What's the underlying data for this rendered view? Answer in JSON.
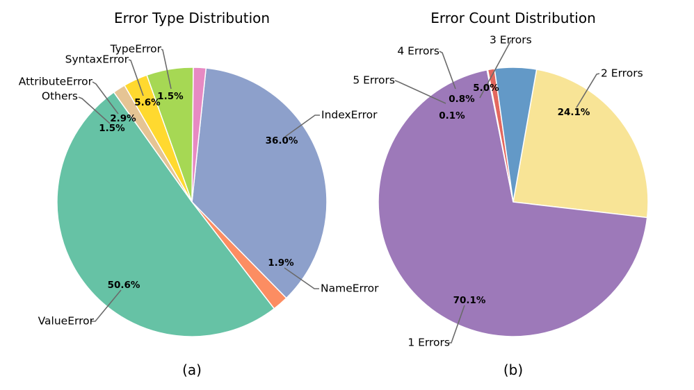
{
  "chart_data": [
    {
      "type": "pie",
      "title": "Error Type Distribution",
      "caption": "(a)",
      "slices": [
        {
          "label": "IndexError",
          "value": 36.0,
          "pct_label": "36.0%",
          "color": "#8da0cb"
        },
        {
          "label": "NameError",
          "value": 1.9,
          "pct_label": "1.9%",
          "color": "#fc8d62"
        },
        {
          "label": "ValueError",
          "value": 50.6,
          "pct_label": "50.6%",
          "color": "#66c2a5"
        },
        {
          "label": "Others",
          "value": 1.5,
          "pct_label": "1.5%",
          "color": "#e5c494"
        },
        {
          "label": "AttributeError",
          "value": 2.9,
          "pct_label": "2.9%",
          "color": "#ffd92f"
        },
        {
          "label": "SyntaxError",
          "value": 5.6,
          "pct_label": "5.6%",
          "color": "#a6d854"
        },
        {
          "label": "TypeError",
          "value": 1.5,
          "pct_label": "1.5%",
          "color": "#e78ac3"
        }
      ]
    },
    {
      "type": "pie",
      "title": "Error Count Distribution",
      "caption": "(b)",
      "slices": [
        {
          "label": "2 Errors",
          "value": 24.1,
          "pct_label": "24.1%",
          "color": "#f8e496"
        },
        {
          "label": "1 Errors",
          "value": 70.1,
          "pct_label": "70.1%",
          "color": "#9d79b9"
        },
        {
          "label": "5 Errors",
          "value": 0.1,
          "pct_label": "0.1%",
          "color": "#e8c0c4"
        },
        {
          "label": "4 Errors",
          "value": 0.8,
          "pct_label": "0.8%",
          "color": "#e3685f"
        },
        {
          "label": "3 Errors",
          "value": 5.0,
          "pct_label": "5.0%",
          "color": "#6399c7"
        }
      ]
    }
  ]
}
